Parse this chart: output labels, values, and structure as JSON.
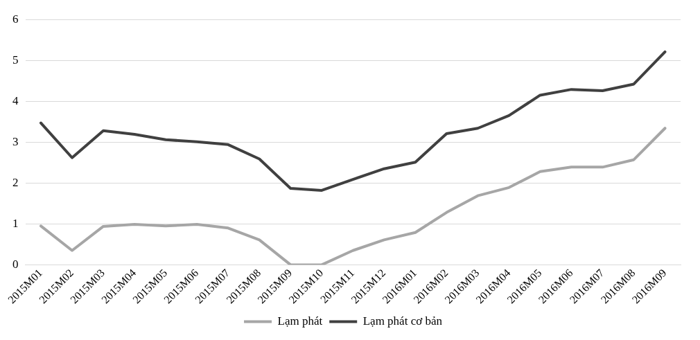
{
  "chart_data": {
    "type": "line",
    "categories": [
      "2015M01",
      "2015M02",
      "2015M03",
      "2015M04",
      "2015M05",
      "2015M06",
      "2015M07",
      "2015M08",
      "2015M09",
      "2015M10",
      "2015M11",
      "2015M12",
      "2016M01",
      "2016M02",
      "2016M03",
      "2016M04",
      "2016M05",
      "2016M06",
      "2016M07",
      "2016M08",
      "2016M09"
    ],
    "series": [
      {
        "name": "Lạm phát",
        "color": "#a6a6a6",
        "values": [
          0.95,
          0.35,
          0.94,
          0.99,
          0.95,
          0.99,
          0.9,
          0.61,
          0,
          0,
          0.35,
          0.61,
          0.79,
          1.28,
          1.69,
          1.89,
          2.28,
          2.39,
          2.39,
          2.57,
          3.34
        ]
      },
      {
        "name": "Lạm phát cơ bản",
        "color": "#404040",
        "values": [
          3.47,
          2.62,
          3.28,
          3.19,
          3.06,
          3.01,
          2.94,
          2.59,
          1.87,
          1.82,
          2.09,
          2.35,
          2.51,
          3.21,
          3.34,
          3.65,
          4.15,
          4.29,
          4.26,
          4.42,
          5.21
        ]
      }
    ],
    "ylim": [
      0,
      6
    ],
    "yticks": [
      0,
      1,
      2,
      3,
      4,
      5,
      6
    ],
    "grid": "y",
    "legend": "bottom",
    "marker": "none",
    "line_style": "solid"
  }
}
